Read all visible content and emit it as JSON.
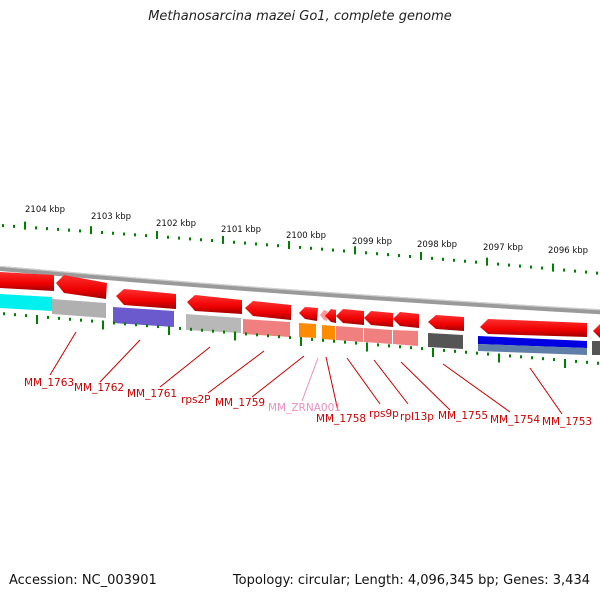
{
  "title": "Methanosarcina mazei Go1, complete genome",
  "footer": {
    "accession": "Accession: NC_003901",
    "summary": "Topology: circular; Length: 4,096,345 bp; Genes: 3,434"
  },
  "scale": {
    "labels": [
      "2104 kbp",
      "2103 kbp",
      "2102 kbp",
      "2101 kbp",
      "2100 kbp",
      "2099 kbp",
      "2098 kbp",
      "2097 kbp",
      "2096 kbp"
    ]
  },
  "genes": [
    {
      "label": "MM_1763",
      "color": "red"
    },
    {
      "label": "MM_1762",
      "color": "red"
    },
    {
      "label": "MM_1761",
      "color": "red"
    },
    {
      "label": "rps2P",
      "color": "red"
    },
    {
      "label": "MM_1759",
      "color": "red"
    },
    {
      "label": "MM_ZRNA001",
      "color": "pink"
    },
    {
      "label": "MM_1758",
      "color": "red"
    },
    {
      "label": "rps9p",
      "color": "red"
    },
    {
      "label": "rpl13p",
      "color": "red"
    },
    {
      "label": "MM_1755",
      "color": "red"
    },
    {
      "label": "MM_1754",
      "color": "red"
    },
    {
      "label": "MM_1753",
      "color": "red"
    }
  ],
  "colors": {
    "gene_red": "#ff0000",
    "label_red": "#cc0000",
    "label_pink": "#e890c0",
    "tick_green": "#008000",
    "backbone": "#999999"
  }
}
